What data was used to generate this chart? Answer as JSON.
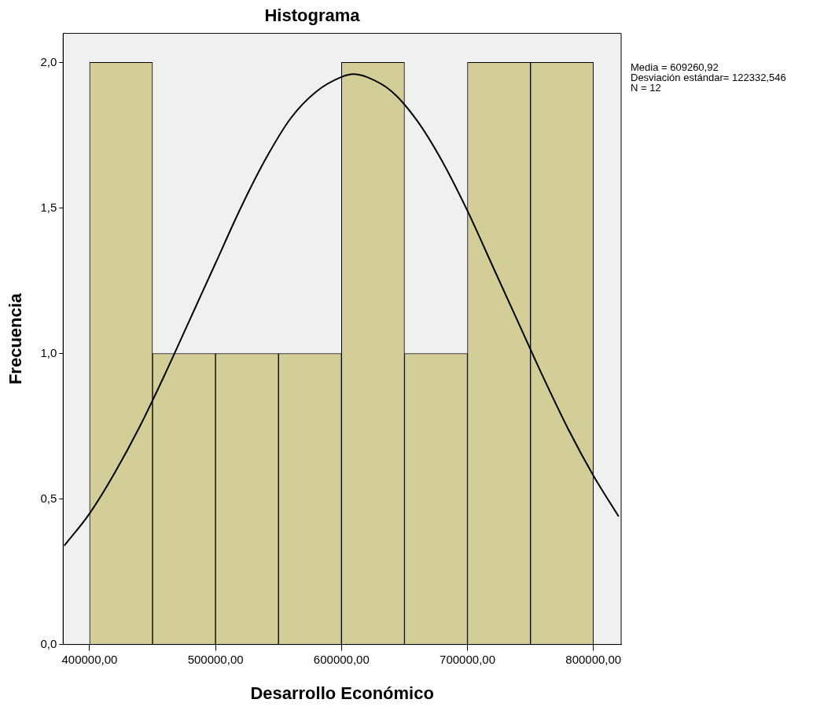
{
  "chart_data": {
    "type": "histogram",
    "title": "Histograma",
    "xlabel": "Desarrollo Económico",
    "ylabel": "Frecuencia",
    "bins": [
      400000,
      450000,
      500000,
      550000,
      600000,
      650000,
      700000,
      750000,
      800000
    ],
    "values": [
      2,
      1,
      1,
      1,
      2,
      1,
      2,
      2
    ],
    "color": "#d3ce97",
    "series": [
      {
        "type": "line",
        "color": "#000000",
        "x": [
          380000,
          400000,
          420000,
          440000,
          460000,
          480000,
          500000,
          520000,
          540000,
          560000,
          580000,
          600000,
          609261,
          620000,
          640000,
          660000,
          680000,
          700000,
          720000,
          740000,
          760000,
          780000,
          800000,
          820000
        ],
        "values": [
          0.34,
          0.45,
          0.59,
          0.75,
          0.93,
          1.12,
          1.31,
          1.5,
          1.67,
          1.81,
          1.9,
          1.95,
          1.96,
          1.95,
          1.9,
          1.8,
          1.66,
          1.49,
          1.3,
          1.11,
          0.92,
          0.74,
          0.58,
          0.44
        ]
      }
    ],
    "xlim": [
      379000,
      822000
    ],
    "xticks": [
      {
        "value": 400000,
        "label": "400000,00"
      },
      {
        "value": 500000,
        "label": "500000,00"
      },
      {
        "value": 600000,
        "label": "600000,00"
      },
      {
        "value": 700000,
        "label": "700000,00"
      },
      {
        "value": 800000,
        "label": "800000,00"
      }
    ],
    "ylim": [
      0,
      2.1
    ],
    "yticks": [
      {
        "value": 0,
        "label": "0,0"
      },
      {
        "value": 0.5,
        "label": "0,5"
      },
      {
        "value": 1,
        "label": "1,0"
      },
      {
        "value": 1.5,
        "label": "1,5"
      },
      {
        "value": 2,
        "label": "2,0"
      }
    ],
    "annotations": [
      "Media = 609260,92",
      "Desviación estándar= 122332,546",
      "N = 12"
    ],
    "grid": false,
    "legend": false,
    "marker": "none",
    "line_style": "solid"
  }
}
